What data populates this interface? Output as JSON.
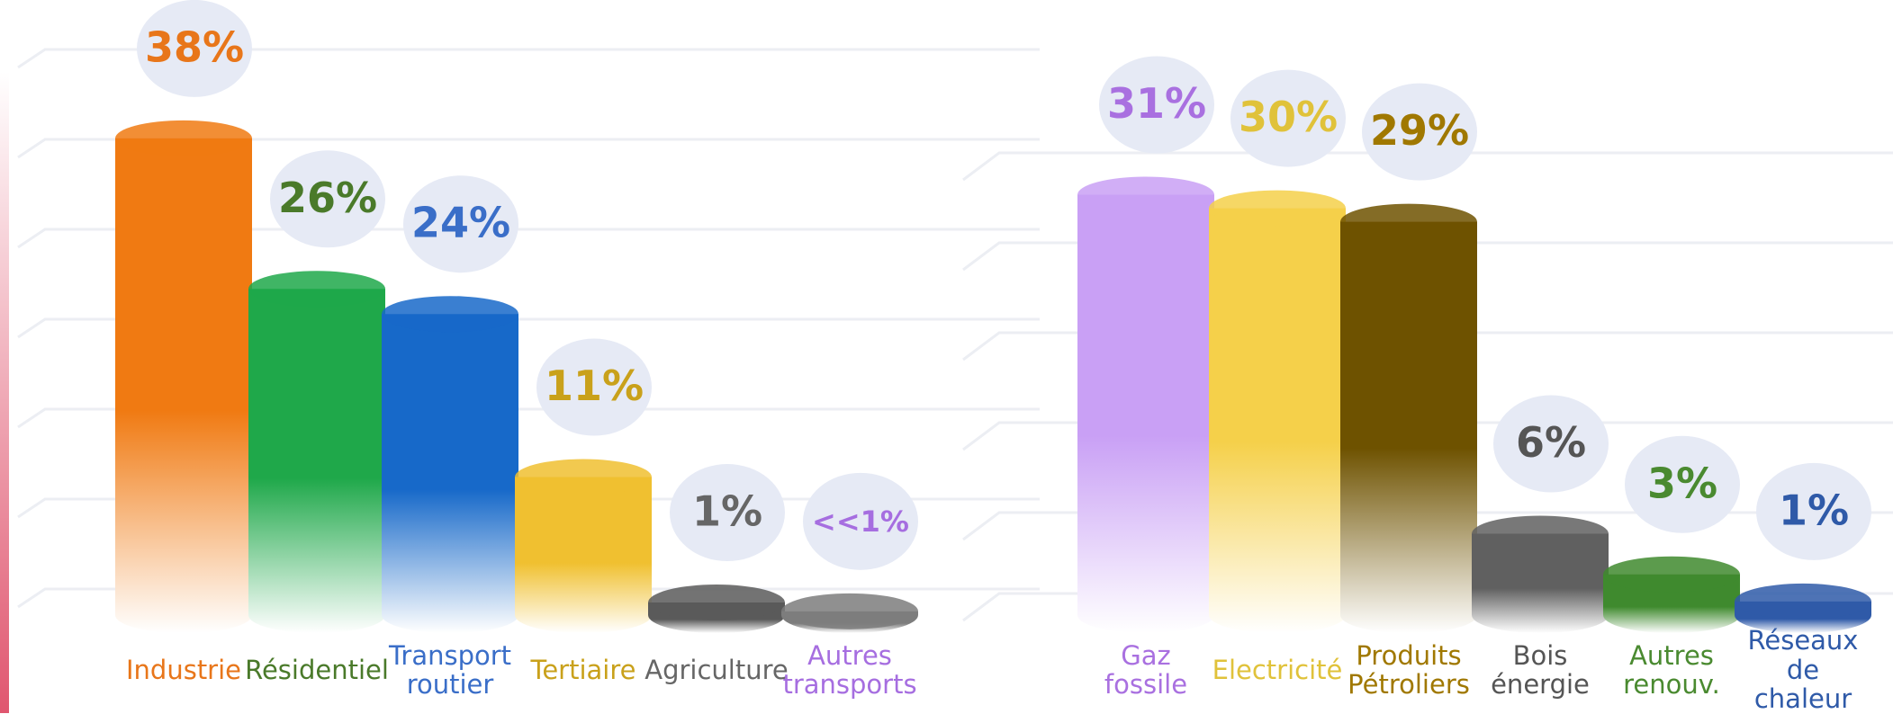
{
  "chart_data": [
    {
      "type": "bar",
      "categories": [
        "Industrie",
        "Résidentiel",
        "Transport routier",
        "Tertiaire",
        "Agriculture",
        "Autres transports"
      ],
      "values": [
        38,
        26,
        24,
        11,
        1,
        0.3
      ],
      "value_labels": [
        "38%",
        "26%",
        "24%",
        "11%",
        "1%",
        "<<1%"
      ],
      "colors": [
        "#f07a12",
        "#1fa84a",
        "#1769c9",
        "#f0c030",
        "#5a5a5a",
        "#7d7d7d"
      ],
      "text_colors": [
        "#e8761a",
        "#4a7a2a",
        "#3a6ec8",
        "#c9a11b",
        "#666666",
        "#a66ee0"
      ],
      "ylim": [
        0,
        40
      ]
    },
    {
      "type": "bar",
      "categories": [
        "Gaz fossile",
        "Electricité",
        "Produits Pétroliers",
        "Bois énergie",
        "Autres renouv.",
        "Réseaux de chaleur"
      ],
      "values": [
        31,
        30,
        29,
        6,
        3,
        1
      ],
      "value_labels": [
        "31%",
        "30%",
        "29%",
        "6%",
        "3%",
        "1%"
      ],
      "colors": [
        "#c9a0f5",
        "#f5d04a",
        "#6e5200",
        "#606060",
        "#3f8a2e",
        "#2f5aa8"
      ],
      "text_colors": [
        "#a970e0",
        "#e0c23a",
        "#a07800",
        "#555555",
        "#4a8a30",
        "#2f5aa8"
      ],
      "ylim": [
        0,
        37
      ]
    }
  ]
}
